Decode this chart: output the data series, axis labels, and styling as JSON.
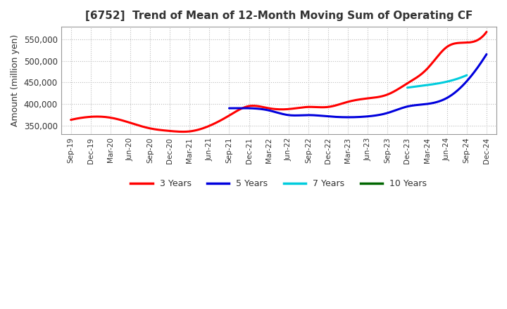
{
  "title": "[6752]  Trend of Mean of 12-Month Moving Sum of Operating CF",
  "ylabel": "Amount (million yen)",
  "ylim": [
    330000,
    580000
  ],
  "yticks": [
    350000,
    400000,
    450000,
    500000,
    550000
  ],
  "background_color": "#ffffff",
  "grid_color": "#bbbbbb",
  "line_width": 2.2,
  "title_color": "#333333",
  "x_labels": [
    "Sep-19",
    "Dec-19",
    "Mar-20",
    "Jun-20",
    "Sep-20",
    "Dec-20",
    "Mar-21",
    "Jun-21",
    "Sep-21",
    "Dec-21",
    "Mar-22",
    "Jun-22",
    "Sep-22",
    "Dec-22",
    "Mar-23",
    "Jun-23",
    "Sep-23",
    "Dec-23",
    "Mar-24",
    "Jun-24",
    "Sep-24",
    "Dec-24"
  ],
  "series": {
    "3 Years": {
      "color": "#ff0000",
      "data_x": [
        0,
        1,
        2,
        3,
        4,
        5,
        6,
        7,
        8,
        9,
        10,
        11,
        12,
        13,
        14,
        15,
        16,
        17,
        18,
        19,
        20,
        21
      ],
      "data_y": [
        363000,
        370000,
        368000,
        356000,
        343000,
        337000,
        336000,
        349000,
        373000,
        395000,
        390000,
        388000,
        393000,
        393000,
        405000,
        413000,
        422000,
        448000,
        482000,
        533000,
        543000,
        568000
      ]
    },
    "5 Years": {
      "color": "#0000dd",
      "data_x": [
        8,
        9,
        10,
        11,
        12,
        13,
        14,
        15,
        16,
        17,
        18,
        19,
        20,
        21
      ],
      "data_y": [
        390000,
        390000,
        385000,
        374000,
        374000,
        371000,
        369000,
        371000,
        379000,
        394000,
        400000,
        414000,
        453000,
        516000
      ]
    },
    "7 Years": {
      "color": "#00ccdd",
      "data_x": [
        17,
        18,
        19,
        20
      ],
      "data_y": [
        438000,
        444000,
        452000,
        467000
      ]
    },
    "10 Years": {
      "color": "#006600",
      "data_x": [],
      "data_y": []
    }
  },
  "legend_labels": [
    "3 Years",
    "5 Years",
    "7 Years",
    "10 Years"
  ],
  "legend_colors": [
    "#ff0000",
    "#0000dd",
    "#00ccdd",
    "#006600"
  ]
}
